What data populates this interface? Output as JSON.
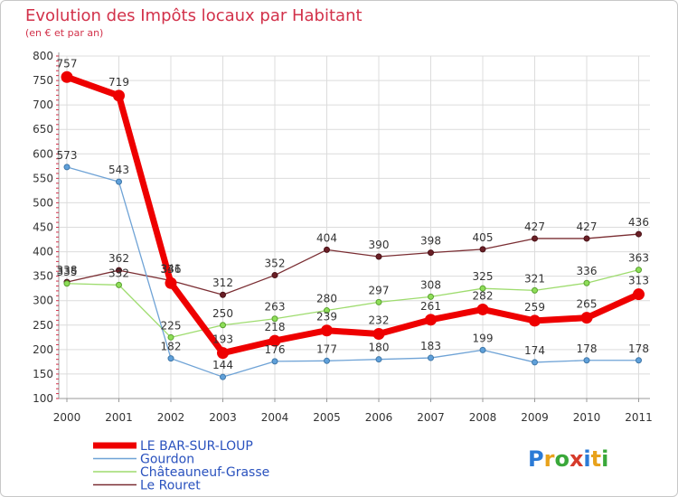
{
  "chart_data": {
    "type": "line",
    "title": "Evolution des Impôts locaux par Habitant",
    "subtitle": "(en € et par an)",
    "xlabel": "",
    "ylabel": "",
    "ylim": [
      100,
      800
    ],
    "ytick_step": 50,
    "grid": true,
    "legend_position": "bottom-left",
    "categories": [
      "2000",
      "2001",
      "2002",
      "2003",
      "2004",
      "2005",
      "2006",
      "2007",
      "2008",
      "2009",
      "2010",
      "2011"
    ],
    "series": [
      {
        "name": "LE BAR-SUR-LOUP",
        "color": "#ee0000",
        "values": [
          757,
          719,
          336,
          193,
          218,
          239,
          232,
          261,
          282,
          259,
          265,
          313
        ]
      },
      {
        "name": "Gourdon",
        "color": "#6fa3d6",
        "values": [
          573,
          543,
          182,
          144,
          176,
          177,
          180,
          183,
          199,
          174,
          178,
          178
        ]
      },
      {
        "name": "Châteauneuf-Grasse",
        "color": "#9edc6e",
        "values": [
          335,
          332,
          225,
          250,
          263,
          280,
          297,
          308,
          325,
          321,
          336,
          363
        ]
      },
      {
        "name": "Le Rouret",
        "color": "#7a2d32",
        "values": [
          338,
          362,
          341,
          312,
          352,
          404,
          390,
          398,
          405,
          427,
          427,
          436
        ]
      }
    ]
  },
  "logo": {
    "letters": [
      "P",
      "r",
      "o",
      "x",
      "i",
      "t",
      "i"
    ],
    "colors": [
      "#2b7bd6",
      "#e8a21c",
      "#3aa83a",
      "#d63b2b",
      "#2b7bd6",
      "#e8a21c",
      "#3aa83a"
    ]
  }
}
